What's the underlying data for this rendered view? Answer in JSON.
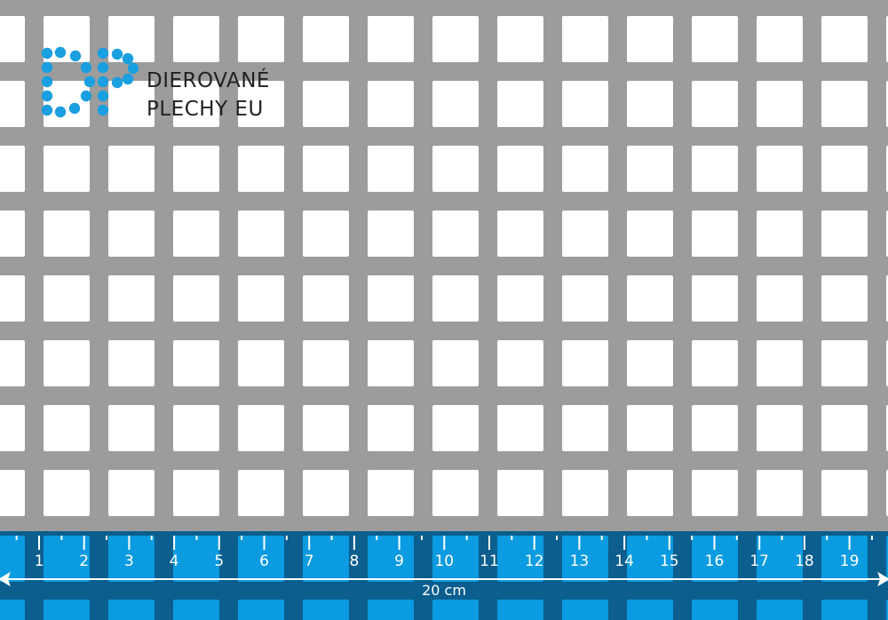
{
  "logo": {
    "mark": "DP",
    "line1": "DIEROVANÉ",
    "line2": "PLECHY EU",
    "color": "#1a9fe0"
  },
  "sheet": {
    "metal_color": "#9c9c9c",
    "hole_color": "#ffffff",
    "hole_shape": "square"
  },
  "ruler": {
    "labels": [
      "1",
      "2",
      "3",
      "4",
      "5",
      "6",
      "7",
      "8",
      "9",
      "10",
      "11",
      "12",
      "13",
      "14",
      "15",
      "16",
      "17",
      "18",
      "19"
    ],
    "dimension": "20 cm",
    "band_color": "#0b5e8e",
    "hole_color": "#0a9be0"
  }
}
